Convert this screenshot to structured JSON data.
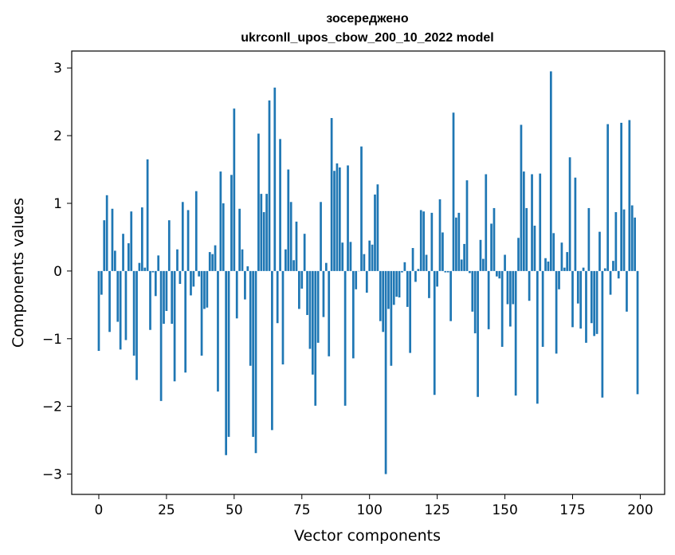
{
  "chart_data": {
    "type": "bar",
    "title_line1": "зосереджено",
    "title_line2": "ukrconll_upos_cbow_200_10_2022 model",
    "xlabel": "Vector components",
    "ylabel": "Components values",
    "xlim": [
      -10,
      209
    ],
    "ylim": [
      -3.3,
      3.25
    ],
    "xticks": [
      0,
      25,
      50,
      75,
      100,
      125,
      150,
      175,
      200
    ],
    "xtick_labels": [
      "0",
      "25",
      "50",
      "75",
      "100",
      "125",
      "150",
      "175",
      "200"
    ],
    "yticks": [
      -3,
      -2,
      -1,
      0,
      1,
      2,
      3
    ],
    "ytick_labels": [
      "−3",
      "−2",
      "−1",
      "0",
      "1",
      "2",
      "3"
    ],
    "grid": false,
    "bar_color": "#1f77b4",
    "values": [
      -1.18,
      -0.35,
      0.75,
      1.12,
      -0.9,
      0.92,
      0.3,
      -0.75,
      -1.16,
      0.55,
      -1.02,
      0.41,
      0.88,
      -1.25,
      -1.61,
      0.12,
      0.94,
      0.05,
      1.65,
      -0.87,
      -0.02,
      -0.37,
      0.23,
      -1.92,
      -0.78,
      -0.59,
      0.75,
      -0.78,
      -1.63,
      0.32,
      -0.19,
      1.02,
      -1.5,
      0.9,
      -0.36,
      -0.23,
      1.18,
      -0.08,
      -1.25,
      -0.56,
      -0.54,
      0.28,
      0.25,
      0.38,
      -1.78,
      1.47,
      1.0,
      -2.72,
      -2.45,
      1.42,
      2.4,
      -0.7,
      0.92,
      0.32,
      -0.42,
      0.07,
      -1.4,
      -2.45,
      -2.69,
      2.03,
      1.14,
      0.87,
      1.14,
      2.52,
      -2.35,
      2.71,
      -0.77,
      1.95,
      -1.38,
      0.32,
      1.5,
      1.02,
      0.16,
      0.73,
      -0.56,
      -0.26,
      0.55,
      -0.65,
      -1.15,
      -1.53,
      -1.99,
      -1.06,
      1.02,
      -0.68,
      0.12,
      -1.26,
      2.26,
      1.48,
      1.59,
      1.53,
      0.42,
      -1.99,
      1.56,
      0.43,
      -1.29,
      -0.27,
      0.0,
      1.84,
      0.25,
      -0.32,
      0.45,
      0.39,
      1.13,
      1.28,
      -0.74,
      -0.9,
      -3.0,
      -0.56,
      -1.4,
      -0.5,
      -0.38,
      -0.39,
      -0.02,
      0.13,
      -0.53,
      -1.21,
      0.34,
      -0.16,
      0.03,
      0.9,
      0.88,
      0.24,
      -0.4,
      0.86,
      -1.83,
      -0.23,
      1.06,
      0.57,
      -0.02,
      -0.02,
      -0.74,
      2.34,
      0.79,
      0.86,
      0.17,
      0.4,
      1.34,
      -0.03,
      -0.6,
      -0.92,
      -1.86,
      0.46,
      0.18,
      1.43,
      -0.86,
      0.7,
      0.93,
      -0.08,
      -0.11,
      -1.12,
      0.24,
      -0.49,
      -0.82,
      -0.49,
      -1.84,
      0.49,
      2.16,
      1.47,
      0.93,
      -0.44,
      1.43,
      0.67,
      -1.96,
      1.44,
      -1.12,
      0.19,
      0.14,
      2.95,
      0.56,
      -1.22,
      -0.27,
      0.42,
      0.05,
      0.28,
      1.68,
      -0.83,
      1.38,
      -0.48,
      -0.85,
      0.05,
      -1.06,
      0.93,
      -0.77,
      -0.96,
      -0.93,
      0.58,
      -1.87,
      0.04,
      2.17,
      -0.35,
      0.15,
      0.87,
      -0.11,
      2.19,
      0.91,
      -0.6,
      2.23,
      0.97,
      0.79,
      -1.82
    ]
  }
}
